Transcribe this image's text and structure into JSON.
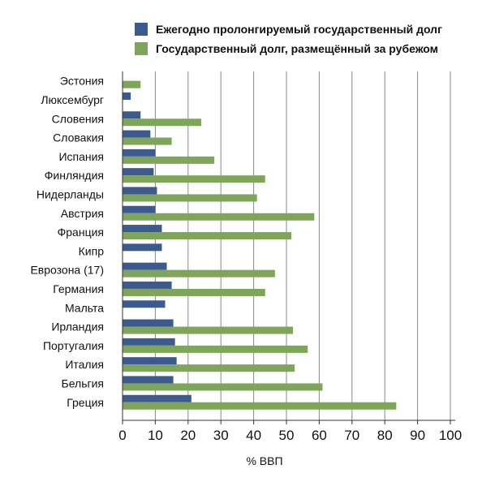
{
  "chart_data": {
    "type": "bar",
    "orientation": "horizontal",
    "categories": [
      "Эстония",
      "Люксембург",
      "Словения",
      "Словакия",
      "Испания",
      "Финляндия",
      "Нидерланды",
      "Австрия",
      "Франция",
      "Кипр",
      "Еврозона (17)",
      "Германия",
      "Мальта",
      "Ирландия",
      "Португалия",
      "Италия",
      "Бельгия",
      "Греция"
    ],
    "series": [
      {
        "name": "Ежегодно пролонгируемый государственный долг",
        "color": "#3d5a8e",
        "values": [
          0,
          2.5,
          5.5,
          8.5,
          10,
          9.5,
          10.5,
          10,
          12,
          12,
          13.5,
          15,
          13,
          15.5,
          16,
          16.5,
          15.5,
          21
        ]
      },
      {
        "name": "Государственный долг, размещённый за рубежом",
        "color": "#7fa55a",
        "values": [
          5.5,
          0,
          24,
          15,
          28,
          43.5,
          41,
          58.5,
          51.5,
          0,
          46.5,
          43.5,
          0,
          52,
          56.5,
          52.5,
          61,
          83.5
        ]
      }
    ],
    "x_ticks": [
      0,
      10,
      20,
      30,
      40,
      50,
      60,
      70,
      80,
      90,
      100
    ],
    "xlim": [
      0,
      100
    ],
    "xlabel": "% ВВП",
    "grid": "vertical",
    "legend_position": "top"
  }
}
